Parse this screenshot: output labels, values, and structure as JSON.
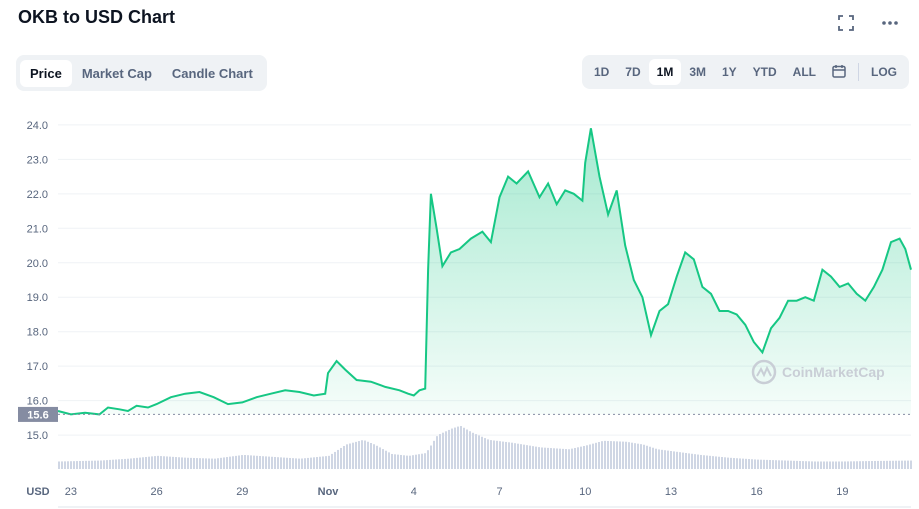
{
  "header": {
    "title": "OKB to USD Chart",
    "expand_icon": "expand-icon",
    "more_icon": "more-icon"
  },
  "tabs": [
    {
      "label": "Price",
      "active": true
    },
    {
      "label": "Market Cap",
      "active": false
    },
    {
      "label": "Candle Chart",
      "active": false
    }
  ],
  "ranges": [
    {
      "label": "1D",
      "active": false
    },
    {
      "label": "7D",
      "active": false
    },
    {
      "label": "1M",
      "active": true
    },
    {
      "label": "3M",
      "active": false
    },
    {
      "label": "1Y",
      "active": false
    },
    {
      "label": "YTD",
      "active": false
    },
    {
      "label": "ALL",
      "active": false
    }
  ],
  "calendar_icon": "calendar-icon",
  "log_label": "LOG",
  "watermark": "CoinMarketCap",
  "colors": {
    "line": "#16c784",
    "accent": "#16c784",
    "volume": "#cfd6e4",
    "marker": "#858ca2"
  },
  "chart_data": {
    "type": "area",
    "currency_label": "USD",
    "ylim": [
      14.8,
      24.2
    ],
    "y_ticks": [
      "24.0",
      "23.0",
      "22.0",
      "21.0",
      "20.0",
      "19.0",
      "18.0",
      "17.0",
      "16.0",
      "15.0"
    ],
    "x_ticks": [
      "23",
      "26",
      "29",
      "Nov",
      "4",
      "7",
      "10",
      "13",
      "16",
      "19"
    ],
    "x_tick_days": [
      1,
      4,
      7,
      10,
      13,
      16,
      19,
      22,
      25,
      28
    ],
    "xlim": [
      0.55,
      30.4
    ],
    "baseline_value": 15.6,
    "baseline_label": "15.6",
    "grid": true,
    "price_series": [
      [
        0.55,
        15.7
      ],
      [
        1.0,
        15.6
      ],
      [
        1.5,
        15.65
      ],
      [
        2.0,
        15.6
      ],
      [
        2.3,
        15.8
      ],
      [
        2.7,
        15.75
      ],
      [
        3.0,
        15.7
      ],
      [
        3.3,
        15.85
      ],
      [
        3.7,
        15.8
      ],
      [
        4.0,
        15.9
      ],
      [
        4.5,
        16.1
      ],
      [
        5.0,
        16.2
      ],
      [
        5.5,
        16.25
      ],
      [
        6.0,
        16.1
      ],
      [
        6.5,
        15.9
      ],
      [
        7.0,
        15.95
      ],
      [
        7.5,
        16.1
      ],
      [
        8.0,
        16.2
      ],
      [
        8.5,
        16.3
      ],
      [
        9.0,
        16.25
      ],
      [
        9.5,
        16.15
      ],
      [
        9.9,
        16.2
      ],
      [
        10.0,
        16.8
      ],
      [
        10.3,
        17.15
      ],
      [
        10.6,
        16.9
      ],
      [
        11.0,
        16.6
      ],
      [
        11.5,
        16.55
      ],
      [
        12.0,
        16.4
      ],
      [
        12.5,
        16.3
      ],
      [
        12.8,
        16.2
      ],
      [
        13.0,
        16.15
      ],
      [
        13.2,
        16.3
      ],
      [
        13.4,
        16.35
      ],
      [
        13.5,
        19.8
      ],
      [
        13.6,
        22.0
      ],
      [
        13.8,
        21.0
      ],
      [
        14.0,
        19.9
      ],
      [
        14.3,
        20.3
      ],
      [
        14.6,
        20.4
      ],
      [
        15.0,
        20.7
      ],
      [
        15.4,
        20.9
      ],
      [
        15.7,
        20.6
      ],
      [
        16.0,
        21.9
      ],
      [
        16.3,
        22.5
      ],
      [
        16.6,
        22.3
      ],
      [
        17.0,
        22.65
      ],
      [
        17.4,
        21.9
      ],
      [
        17.7,
        22.3
      ],
      [
        18.0,
        21.7
      ],
      [
        18.3,
        22.1
      ],
      [
        18.6,
        22.0
      ],
      [
        18.9,
        21.8
      ],
      [
        19.0,
        22.9
      ],
      [
        19.2,
        23.9
      ],
      [
        19.5,
        22.5
      ],
      [
        19.8,
        21.4
      ],
      [
        20.1,
        22.1
      ],
      [
        20.4,
        20.5
      ],
      [
        20.7,
        19.5
      ],
      [
        21.0,
        19.0
      ],
      [
        21.3,
        17.9
      ],
      [
        21.6,
        18.6
      ],
      [
        21.9,
        18.8
      ],
      [
        22.2,
        19.6
      ],
      [
        22.5,
        20.3
      ],
      [
        22.8,
        20.1
      ],
      [
        23.1,
        19.3
      ],
      [
        23.4,
        19.1
      ],
      [
        23.7,
        18.6
      ],
      [
        24.0,
        18.6
      ],
      [
        24.3,
        18.5
      ],
      [
        24.6,
        18.2
      ],
      [
        24.9,
        17.7
      ],
      [
        25.2,
        17.4
      ],
      [
        25.5,
        18.1
      ],
      [
        25.8,
        18.4
      ],
      [
        26.1,
        18.9
      ],
      [
        26.4,
        18.9
      ],
      [
        26.7,
        19.0
      ],
      [
        27.0,
        18.9
      ],
      [
        27.3,
        19.8
      ],
      [
        27.6,
        19.6
      ],
      [
        27.9,
        19.3
      ],
      [
        28.2,
        19.4
      ],
      [
        28.5,
        19.1
      ],
      [
        28.8,
        18.9
      ],
      [
        29.1,
        19.3
      ],
      [
        29.4,
        19.8
      ],
      [
        29.7,
        20.6
      ],
      [
        30.0,
        20.7
      ],
      [
        30.2,
        20.4
      ],
      [
        30.4,
        19.8
      ]
    ],
    "volume_series": [
      [
        0.55,
        0.16
      ],
      [
        2.0,
        0.18
      ],
      [
        3.0,
        0.22
      ],
      [
        4.0,
        0.28
      ],
      [
        5.0,
        0.24
      ],
      [
        6.0,
        0.22
      ],
      [
        7.0,
        0.3
      ],
      [
        8.0,
        0.26
      ],
      [
        9.0,
        0.22
      ],
      [
        10.0,
        0.28
      ],
      [
        10.6,
        0.52
      ],
      [
        11.2,
        0.62
      ],
      [
        11.6,
        0.52
      ],
      [
        12.2,
        0.32
      ],
      [
        12.8,
        0.28
      ],
      [
        13.4,
        0.34
      ],
      [
        13.8,
        0.72
      ],
      [
        14.3,
        0.86
      ],
      [
        14.6,
        0.92
      ],
      [
        15.0,
        0.78
      ],
      [
        15.6,
        0.62
      ],
      [
        16.4,
        0.56
      ],
      [
        17.4,
        0.46
      ],
      [
        18.4,
        0.42
      ],
      [
        19.0,
        0.5
      ],
      [
        19.6,
        0.6
      ],
      [
        20.4,
        0.58
      ],
      [
        21.0,
        0.52
      ],
      [
        21.5,
        0.42
      ],
      [
        22.0,
        0.38
      ],
      [
        23.0,
        0.3
      ],
      [
        24.0,
        0.24
      ],
      [
        25.0,
        0.2
      ],
      [
        26.0,
        0.18
      ],
      [
        27.0,
        0.16
      ],
      [
        28.0,
        0.16
      ],
      [
        29.0,
        0.17
      ],
      [
        30.4,
        0.18
      ]
    ]
  }
}
